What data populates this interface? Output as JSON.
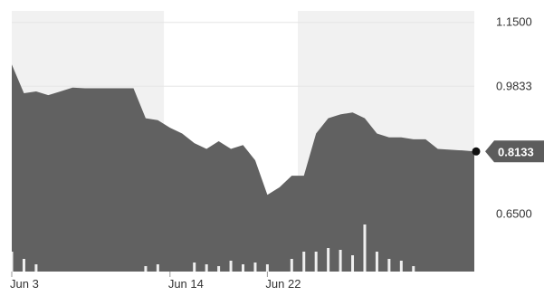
{
  "chart_data": {
    "type": "area",
    "title": "",
    "xlabel": "",
    "ylabel": "",
    "x_ticks": [
      "Jun 3",
      "Jun 14",
      "Jun 22"
    ],
    "x_tick_index": [
      0,
      13,
      21
    ],
    "y_ticks": [
      "1.1500",
      "0.9833",
      "0.6500"
    ],
    "y_tick_values": [
      1.15,
      0.9833,
      0.65
    ],
    "ylim": [
      0.5,
      1.18
    ],
    "last_value_label": "0.8133",
    "grid": true,
    "series": [
      {
        "values": [
          1.04,
          0.965,
          0.97,
          0.96,
          0.97,
          0.98,
          0.978,
          0.978,
          0.978,
          0.978,
          0.978,
          0.9,
          0.895,
          0.875,
          0.86,
          0.835,
          0.82,
          0.84,
          0.82,
          0.83,
          0.79,
          0.7,
          0.72,
          0.75,
          0.75,
          0.86,
          0.9,
          0.91,
          0.915,
          0.9,
          0.86,
          0.85,
          0.85,
          0.845,
          0.845,
          0.82,
          0.818,
          0.816,
          0.8133
        ]
      }
    ],
    "volume": [
      22,
      14,
      8,
      0,
      0,
      0,
      0,
      0,
      0,
      0,
      0,
      6,
      8,
      0,
      0,
      10,
      8,
      6,
      12,
      8,
      10,
      8,
      0,
      14,
      22,
      22,
      26,
      24,
      18,
      52,
      22,
      14,
      12,
      6,
      0,
      0,
      0,
      0,
      0
    ],
    "colors": {
      "area_fill": "#616161",
      "volume_bar": "#ffffff",
      "band_dark": "#f1f1f1",
      "grid": "#e6e6e6",
      "last_marker": "#111111",
      "label_bg": "#5c5c5c",
      "tick_text": "#333333"
    }
  }
}
